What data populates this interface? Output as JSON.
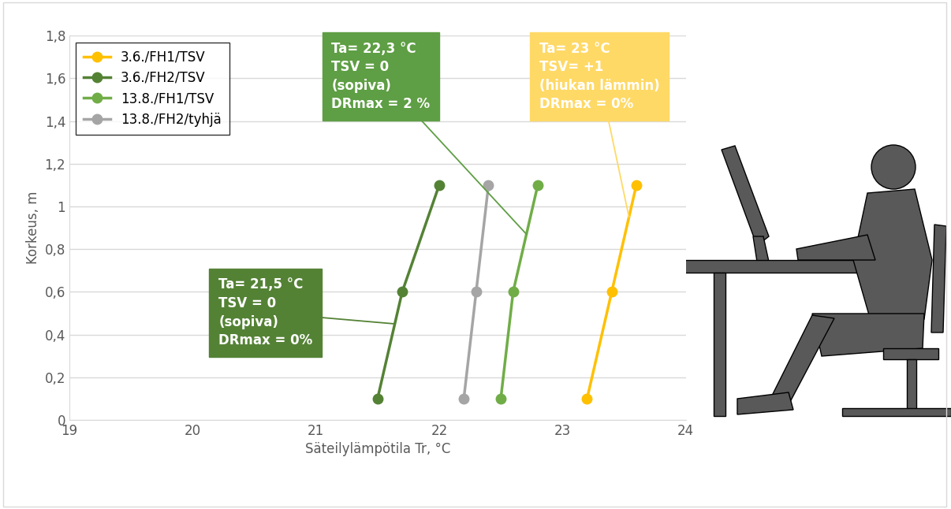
{
  "chart_data": {
    "type": "line",
    "x_label": "Säteilylämpötila Tr, °C",
    "y_label": "Korkeus, m",
    "series": [
      {
        "name": "3.6./FH1/TSV",
        "color": "#FFC000",
        "marker": "o",
        "line_style": "solid",
        "x": [
          23.2,
          23.4,
          23.6
        ],
        "values": [
          0.1,
          0.6,
          1.1
        ]
      },
      {
        "name": "3.6./FH2/TSV",
        "color": "#548235",
        "marker": "o",
        "line_style": "solid",
        "x": [
          21.5,
          21.7,
          22.0
        ],
        "values": [
          0.1,
          0.6,
          1.1
        ]
      },
      {
        "name": "13.8./FH1/TSV",
        "color": "#70AD47",
        "marker": "o",
        "line_style": "solid",
        "x": [
          22.5,
          22.6,
          22.8
        ],
        "values": [
          0.1,
          0.6,
          1.1
        ]
      },
      {
        "name": "13.8./FH2/tyhjä",
        "color": "#A5A5A5",
        "marker": "o",
        "line_style": "solid",
        "x": [
          22.2,
          22.3,
          22.4
        ],
        "values": [
          0.1,
          0.6,
          1.1
        ]
      }
    ],
    "xlim": [
      19,
      24
    ],
    "xticks": [
      19,
      20,
      21,
      22,
      23,
      24
    ],
    "ylim": [
      0,
      1.8
    ],
    "yticks": [
      0,
      {
        "value": 0.2,
        "label": "0,2"
      },
      {
        "value": 0.4,
        "label": "0,4"
      },
      {
        "value": 0.6,
        "label": "0,6"
      },
      {
        "value": 0.8,
        "label": "0,8"
      },
      1,
      {
        "value": 1.2,
        "label": "1,2"
      },
      {
        "value": 1.4,
        "label": "1,4"
      },
      {
        "value": 1.6,
        "label": "1,6"
      },
      {
        "value": 1.8,
        "label": "1,8"
      }
    ],
    "grid": true,
    "legend": "upper left",
    "annotations": [
      {
        "text": "Ta= 22,3 °C\nTSV = 0\n(sopiva)\nDRmax = 2 %",
        "series": "13.8./FH1/TSV",
        "color": "#5E9E44"
      },
      {
        "text": "Ta= 23 °C\nTSV= +1\n(hiukan lämmin)\nDRmax = 0%",
        "series": "3.6./FH1/TSV",
        "color": "#FFD966"
      },
      {
        "text": "Ta= 21,5 °C\nTSV = 0\n(sopiva)\nDRmax = 0%",
        "series": "3.6./FH2/TSV",
        "color": "#548235"
      }
    ]
  }
}
